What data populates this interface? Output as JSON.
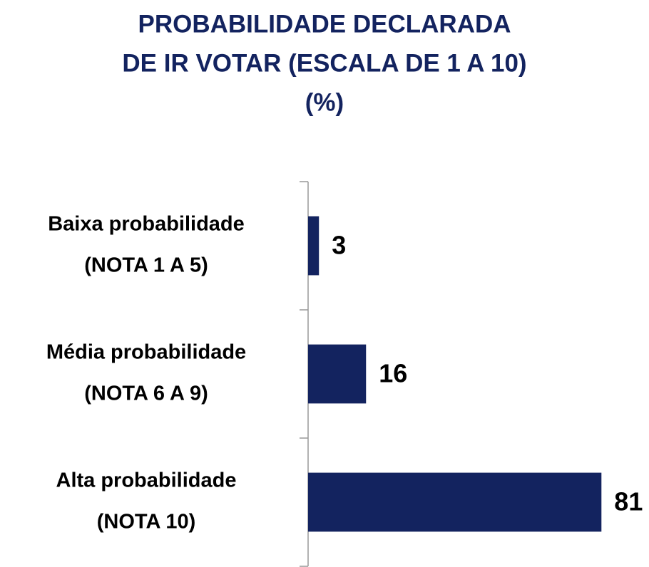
{
  "chart_data": {
    "type": "bar",
    "orientation": "horizontal",
    "title": [
      "PROBABILIDADE DECLARADA",
      "DE IR VOTAR  (ESCALA DE 1 A 10)",
      "(%)"
    ],
    "categories": [
      [
        "Baixa probabilidade",
        "(NOTA 1 A 5)"
      ],
      [
        "Média probabilidade",
        "(NOTA 6 A 9)"
      ],
      [
        "Alta probabilidade",
        "(NOTA 10)"
      ]
    ],
    "values": [
      3,
      16,
      81
    ],
    "color": "#13235f",
    "xlim": [
      0,
      90
    ]
  }
}
